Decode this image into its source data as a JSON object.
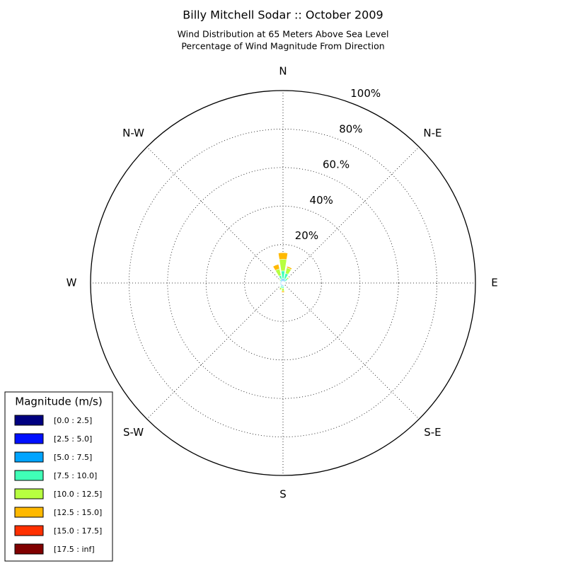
{
  "chart_data": {
    "type": "windrose",
    "title": "Billy Mitchell Sodar :: October 2009",
    "subtitle": [
      "Wind Distribution at 65 Meters Above Sea Level",
      "Percentage of Wind Magnitude From Direction"
    ],
    "x": [
      0,
      22.5,
      45,
      67.5,
      90,
      112.5,
      135,
      157.5,
      180,
      202.5,
      225,
      247.5,
      270,
      292.5,
      315,
      337.5
    ],
    "xticks": [
      {
        "value": 0,
        "label": "N"
      },
      {
        "value": 45,
        "label": "N-E"
      },
      {
        "value": 90,
        "label": "E"
      },
      {
        "value": 135,
        "label": "S-E"
      },
      {
        "value": 180,
        "label": "S"
      },
      {
        "value": 225,
        "label": "S-W"
      },
      {
        "value": 270,
        "label": "W"
      },
      {
        "value": 315,
        "label": "N-W"
      }
    ],
    "ylim": [
      0,
      100
    ],
    "yticks": [
      {
        "value": 20,
        "label": "20%"
      },
      {
        "value": 40,
        "label": "40%"
      },
      {
        "value": 60,
        "label": "60.%"
      },
      {
        "value": 80,
        "label": "80%"
      },
      {
        "value": 100,
        "label": "100%"
      }
    ],
    "grid": true,
    "legend_title": "Magnitude (m/s)",
    "legend_position": "lower left",
    "series": [
      {
        "name": "[0.0 : 2.5]",
        "color": "#000080",
        "values": [
          0.3,
          0.2,
          0.1,
          0.1,
          0.1,
          0.1,
          0.1,
          0.2,
          0.3,
          0.3,
          0.3,
          0.3,
          0.3,
          0.3,
          0.2,
          0.3
        ]
      },
      {
        "name": "[2.5 : 5.0]",
        "color": "#0010ff",
        "values": [
          0.5,
          0.5,
          0.4,
          0.3,
          0.2,
          0.2,
          0.2,
          0.3,
          0.6,
          0.6,
          0.5,
          0.6,
          0.6,
          0.5,
          0.5,
          0.6
        ]
      },
      {
        "name": "[5.0 : 7.5]",
        "color": "#00a4ff",
        "values": [
          1.5,
          1.5,
          1,
          0.6,
          0.3,
          0.2,
          0.2,
          0.3,
          0.8,
          0.8,
          0.6,
          0.6,
          0.6,
          0.6,
          0.8,
          1.2
        ]
      },
      {
        "name": "[7.5 : 10.0]",
        "color": "#40ffb7",
        "values": [
          4,
          3,
          1.5,
          0.6,
          0.2,
          0,
          0,
          0.2,
          1,
          1,
          0.4,
          0.3,
          0.3,
          0.4,
          0.6,
          2
        ]
      },
      {
        "name": "[10.0 : 12.5]",
        "color": "#b7ff40",
        "values": [
          6,
          3,
          0.8,
          0.3,
          0,
          0,
          0,
          0,
          1.5,
          1,
          0.2,
          0.2,
          0.1,
          0.2,
          0.5,
          3.5
        ]
      },
      {
        "name": "[12.5 : 15.0]",
        "color": "#ffb900",
        "values": [
          3.5,
          0.8,
          0.2,
          0,
          0,
          0,
          0,
          0,
          0.8,
          0.3,
          0,
          0,
          0,
          0,
          0.3,
          2.5
        ]
      },
      {
        "name": "[15.0 : 17.5]",
        "color": "#ff3000",
        "values": [
          0.2,
          0,
          0,
          0,
          0,
          0,
          0,
          0,
          0,
          0,
          0,
          0,
          0,
          0,
          0,
          0.2
        ]
      },
      {
        "name": "[17.5 : inf]",
        "color": "#800000",
        "values": [
          0,
          0,
          0,
          0,
          0,
          0,
          0,
          0,
          0,
          0,
          0,
          0,
          0,
          0,
          0,
          0
        ]
      }
    ]
  }
}
